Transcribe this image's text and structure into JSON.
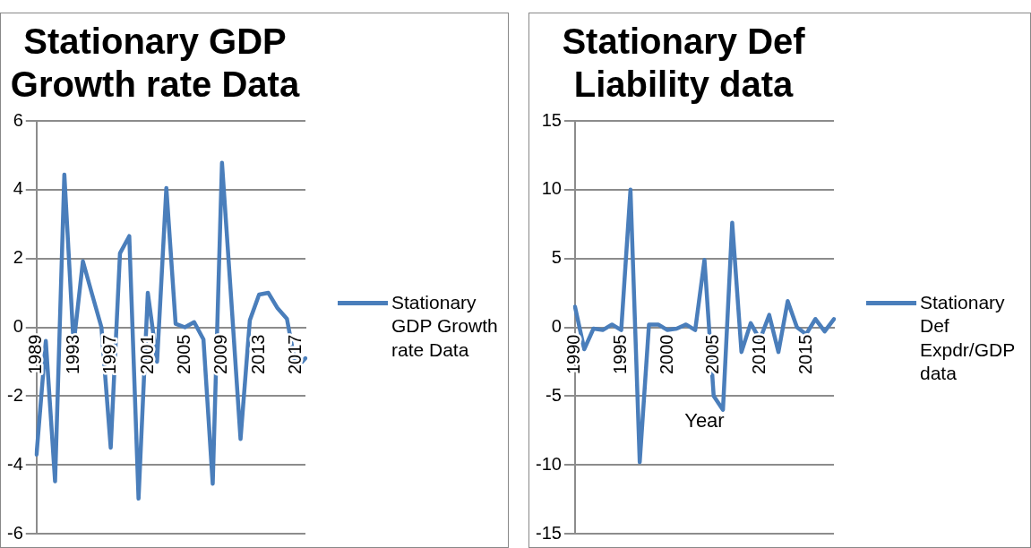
{
  "chart_data": [
    {
      "type": "line",
      "title": "Stationary GDP Growth rate Data",
      "categories": [
        "1989",
        null,
        null,
        null,
        "1993",
        null,
        null,
        null,
        "1997",
        null,
        null,
        null,
        "2001",
        null,
        null,
        null,
        "2005",
        null,
        null,
        null,
        "2009",
        null,
        null,
        null,
        "2013",
        null,
        null,
        null,
        "2017",
        null
      ],
      "series": [
        {
          "name": "Stationary GDP Growth rate Data",
          "color": "#4a7ebb",
          "values": [
            -3.7,
            -0.4,
            -4.48,
            4.44,
            -0.5,
            1.92,
            0.95,
            0.0,
            -3.5,
            2.15,
            2.65,
            -4.98,
            1.0,
            -1.0,
            4.05,
            0.1,
            0.0,
            0.15,
            -0.35,
            -4.55,
            4.78,
            0.8,
            -3.25,
            0.2,
            0.95,
            1.0,
            0.55,
            0.25,
            -1.2,
            -0.9
          ]
        }
      ],
      "ylim": [
        -6,
        6
      ],
      "yticks": [
        -6,
        -4,
        -2,
        0,
        2,
        4,
        6
      ],
      "grid": "y",
      "legend": "right",
      "marker": "none",
      "line_style": "solid"
    },
    {
      "type": "line",
      "title": "Stationary Def Liability data",
      "xlabel": "Year",
      "categories": [
        "1990",
        null,
        null,
        null,
        null,
        "1995",
        null,
        null,
        null,
        null,
        "2000",
        null,
        null,
        null,
        null,
        "2005",
        null,
        null,
        null,
        null,
        "2010",
        null,
        null,
        null,
        null,
        "2015",
        null,
        null,
        null
      ],
      "series": [
        {
          "name": "Stationary Def Expdr/GDP data",
          "color": "#4a7ebb",
          "values": [
            1.5,
            -1.6,
            -0.1,
            -0.2,
            0.2,
            -0.2,
            10.0,
            -9.8,
            0.2,
            0.2,
            -0.2,
            -0.1,
            0.2,
            -0.2,
            4.9,
            -5.0,
            -6.0,
            7.6,
            -1.8,
            0.3,
            -0.9,
            0.9,
            -1.8,
            1.9,
            0.0,
            -0.5,
            0.6,
            -0.3,
            0.6
          ]
        }
      ],
      "ylim": [
        -15,
        15
      ],
      "yticks": [
        -15,
        -10,
        -5,
        0,
        5,
        10,
        15
      ],
      "grid": "y",
      "legend": "right",
      "marker": "none",
      "line_style": "solid"
    }
  ]
}
